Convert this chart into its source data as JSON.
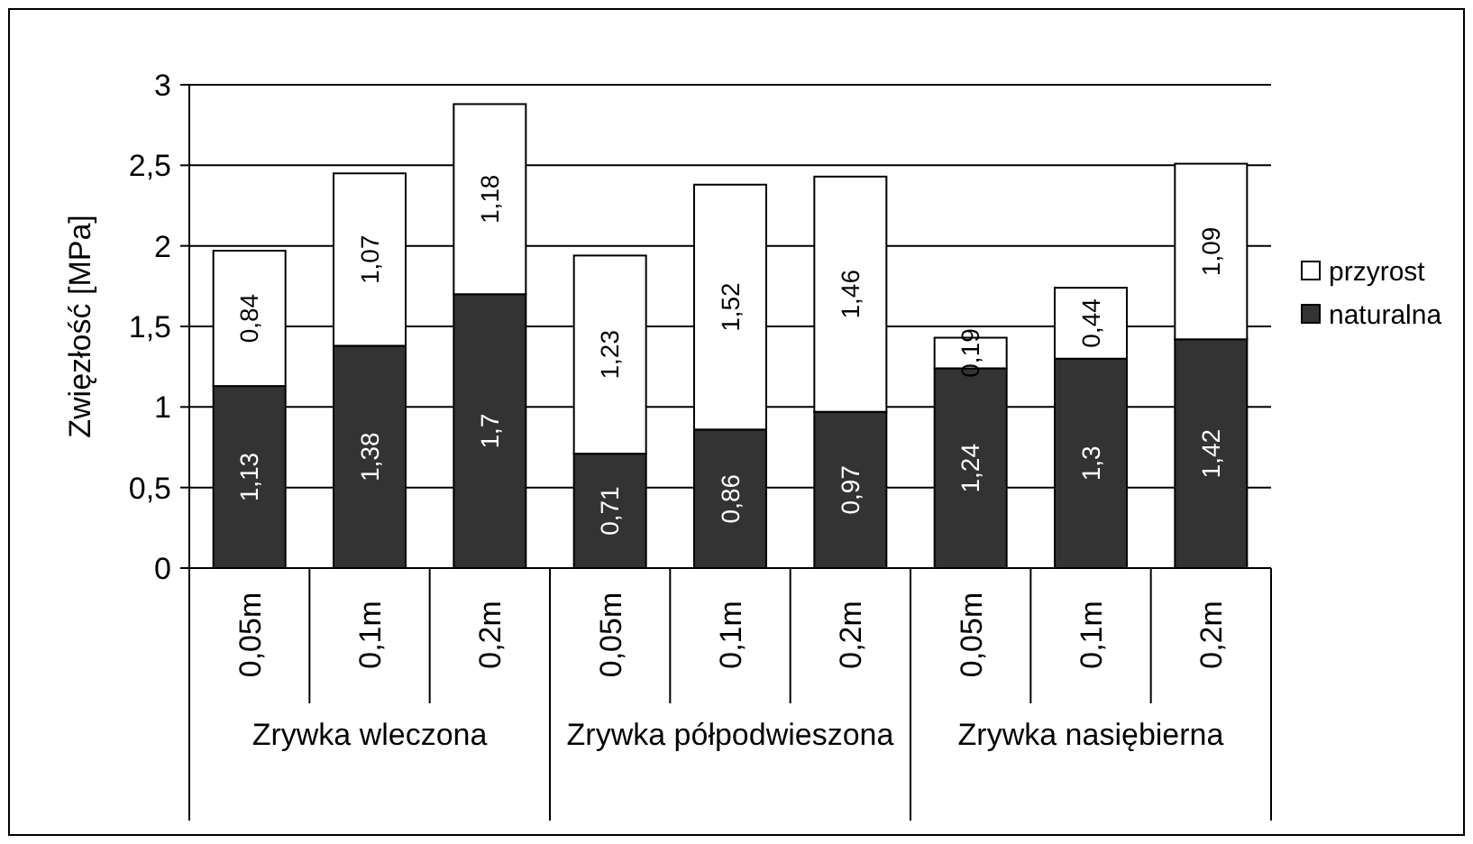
{
  "chart_data": {
    "type": "bar",
    "stacked": true,
    "ylabel": "Zwięzłość [MPa]",
    "categories": [
      "0,05m",
      "0,1m",
      "0,2m",
      "0,05m",
      "0,1m",
      "0,2m",
      "0,05m",
      "0,1m",
      "0,2m"
    ],
    "series": [
      {
        "name": "naturalna",
        "color": "#333333",
        "values": [
          1.13,
          1.38,
          1.7,
          0.71,
          0.86,
          0.97,
          1.24,
          1.3,
          1.42
        ],
        "value_labels": [
          "1,13",
          "1,38",
          "1,7",
          "0,71",
          "0,86",
          "0,97",
          "1,24",
          "1,3",
          "1,42"
        ]
      },
      {
        "name": "przyrost",
        "color": "#ffffff",
        "values": [
          0.84,
          1.07,
          1.18,
          1.23,
          1.52,
          1.46,
          0.19,
          0.44,
          1.09
        ],
        "value_labels": [
          "0,84",
          "1,07",
          "1,18",
          "1,23",
          "1,52",
          "1,46",
          "0,19",
          "0,44",
          "1,09"
        ]
      }
    ],
    "annotations": [
      "Zrywka wleczona",
      "Zrywka półpodwieszona",
      "Zrywka nasiębierna"
    ],
    "ylim": [
      0,
      3
    ],
    "yticks": [
      0,
      {
        "value": 0.5,
        "label": "0,5"
      },
      1,
      {
        "value": 1.5,
        "label": "1,5"
      },
      2,
      {
        "value": 2.5,
        "label": "2,5"
      },
      3
    ],
    "grid": "y",
    "legend": "right"
  }
}
